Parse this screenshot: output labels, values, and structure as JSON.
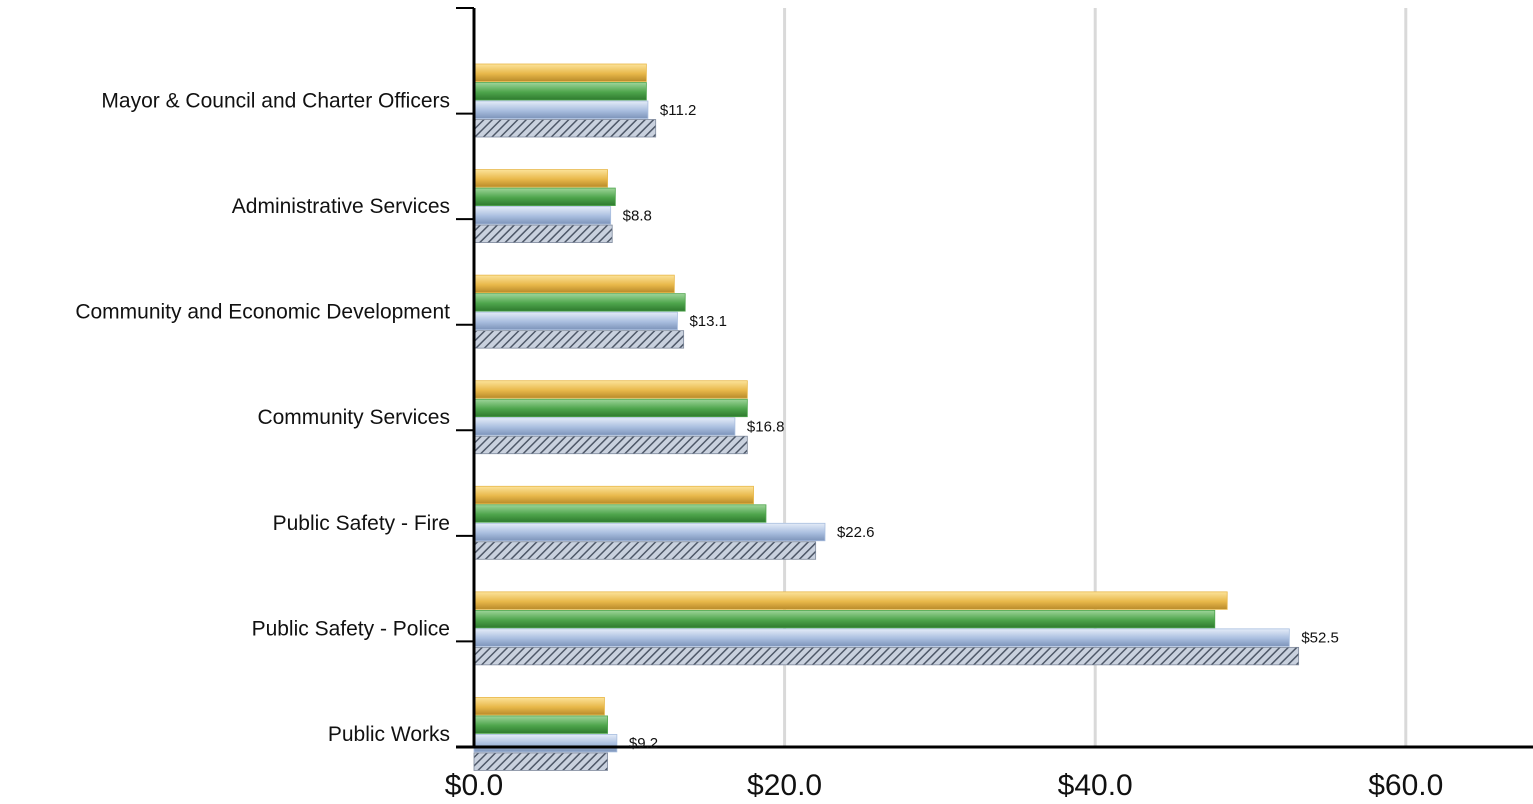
{
  "chart_data": {
    "type": "bar",
    "orientation": "horizontal",
    "categories": [
      "Mayor & Council and Charter Officers",
      "Administrative Services",
      "Community and Economic Development",
      "Community Services",
      "Public Safety - Fire",
      "Public Safety - Police",
      "Public Works"
    ],
    "series": [
      {
        "color": "#E8B84A",
        "values": [
          11.1,
          8.6,
          12.9,
          17.6,
          18.0,
          48.5,
          8.4
        ]
      },
      {
        "color": "#4EA54C",
        "values": [
          11.1,
          9.1,
          13.6,
          17.6,
          18.8,
          47.7,
          8.6
        ]
      },
      {
        "color": "#A9BEDF",
        "values": [
          11.2,
          8.8,
          13.1,
          16.8,
          22.6,
          52.5,
          9.2
        ]
      },
      {
        "color": "#7D889B",
        "pattern": "hatched",
        "values": [
          11.7,
          8.9,
          13.5,
          17.6,
          22.0,
          53.1,
          8.6
        ]
      }
    ],
    "data_labels": [
      "$11.2",
      "$8.8",
      "$13.1",
      "$16.8",
      "$22.6",
      "$52.5",
      "$9.2"
    ],
    "x_ticks": [
      "$0.0",
      "$20.0",
      "$40.0",
      "$60.0"
    ],
    "xlim": [
      0,
      68
    ],
    "grid": "vertical",
    "legend": "none",
    "title": "",
    "xlabel": "",
    "ylabel": ""
  }
}
